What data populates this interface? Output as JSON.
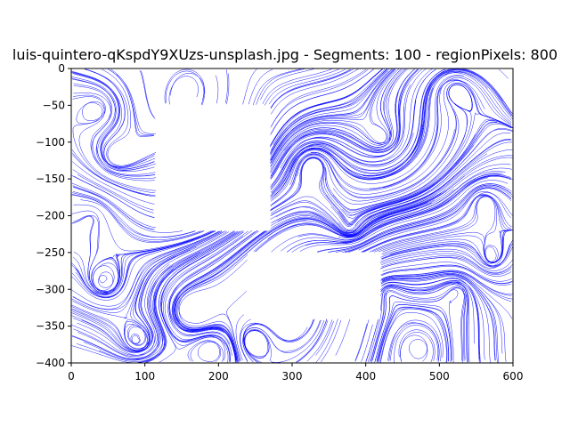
{
  "chart_data": {
    "type": "streamplot",
    "title": "luis-quintero-qKspdY9XUzs-unsplash.jpg - Segments: 100 - regionPixels: 800",
    "xlabel": "",
    "ylabel": "",
    "xlim": [
      0,
      600
    ],
    "ylim": [
      -400,
      0
    ],
    "x_ticks": [
      0,
      100,
      200,
      300,
      400,
      500,
      600
    ],
    "y_ticks": [
      0,
      -50,
      -100,
      -150,
      -200,
      -250,
      -300,
      -350,
      -400
    ],
    "x_tick_labels": [
      "0",
      "100",
      "200",
      "300",
      "400",
      "500",
      "600"
    ],
    "y_tick_labels": [
      "0",
      "−50",
      "−100",
      "−150",
      "−200",
      "−250",
      "−300",
      "−350",
      "−400"
    ],
    "line_color": "#0000ff",
    "grid": false,
    "legend": "none",
    "empty_regions": [
      {
        "x": [
          115,
          270
        ],
        "y": [
          -220,
          -50
        ]
      },
      {
        "x": [
          240,
          420
        ],
        "y": [
          -340,
          -250
        ]
      }
    ]
  }
}
